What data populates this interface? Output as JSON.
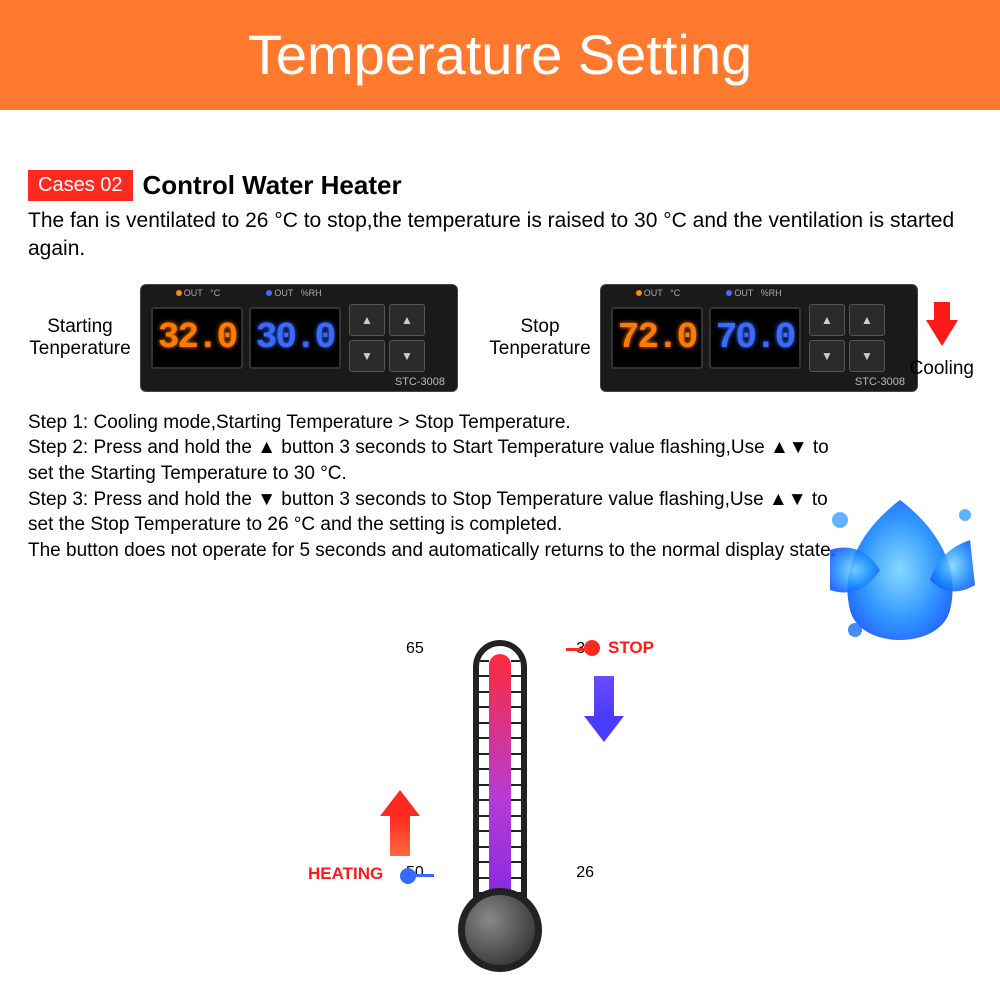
{
  "banner": {
    "title": "Temperature Setting",
    "bg": "#ff7a2e",
    "color": "#ffffff",
    "fontsize": 56
  },
  "case": {
    "badge": "Cases 02",
    "badge_bg": "#ff2a1f",
    "title": "Control Water Heater"
  },
  "description": "The fan is ventilated to 26 °C to stop,the temperature is raised to 30 °C and the ventilation is started again.",
  "devices": {
    "model": "STC-3008",
    "left": {
      "label": "Starting Tenperature",
      "val1": "32.0",
      "val2": "30.0"
    },
    "right": {
      "label": "Stop Tenperature",
      "val1": "72.0",
      "val2": "70.0"
    },
    "topmarks": {
      "out": "OUT",
      "c": "°C",
      "rh": "%RH"
    },
    "btn_labels": [
      "▲ 1",
      "▲ 1",
      "▼ 2",
      "▼ 2"
    ],
    "screen_orange": "#ff7a00",
    "screen_blue": "#3a6bff"
  },
  "cooling": {
    "label": "Cooling",
    "arrow_color": "#ff1a1a"
  },
  "steps": {
    "s1": "Step 1: Cooling mode,Starting Temperature > Stop Temperature.",
    "s2a": "Step 2: Press and hold the ",
    "s2b": " button 3 seconds to Start Temperature value flashing,Use ▲▼ to set the Starting Temperature to 30 °C.",
    "s3a": "Step 3: Press and hold the ",
    "s3b": " button 3 seconds to Stop Temperature value flashing,Use ▲▼ to set the Stop Temperature to 26 °C and the setting is completed.",
    "s4": "The button does not operate for 5 seconds and automatically returns to the normal display state.",
    "up_tri": "▲",
    "down_tri": "▼"
  },
  "thermo": {
    "left_top": "65",
    "left_bottom": "50",
    "right_top": "30",
    "right_bottom": "26",
    "stop": "STOP",
    "heating": "HEATING",
    "tick_count": 16,
    "fill_gradient": [
      "#8a2be2",
      "#b53cd4",
      "#ff2a3a"
    ],
    "border_color": "#222222",
    "stop_color": "#ff1a1a",
    "heating_color": "#ff1a1a",
    "down_arrow_color": "#4a3cff",
    "up_arrow_color": "#ff2a1f",
    "heat_pin_color": "#3a6bff"
  }
}
